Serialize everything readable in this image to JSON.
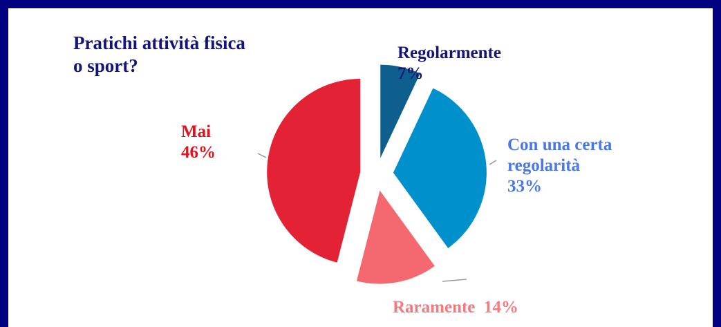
{
  "chart_data": {
    "type": "pie",
    "title": "Pratichi attività fisica o sport?",
    "categories": [
      "Regolarmente",
      "Con una certa regolarità",
      "Raramente",
      "Mai"
    ],
    "values": [
      7,
      33,
      14,
      46
    ],
    "value_labels": [
      "7%",
      "33%",
      "14%",
      "46%"
    ],
    "colors": [
      "#0e5f8e",
      "#0090cc",
      "#f4686f",
      "#e32236"
    ],
    "label_colors": [
      "#14147a",
      "#4a78e6",
      "#f47a7e",
      "#e8101c"
    ],
    "exploded": true
  }
}
